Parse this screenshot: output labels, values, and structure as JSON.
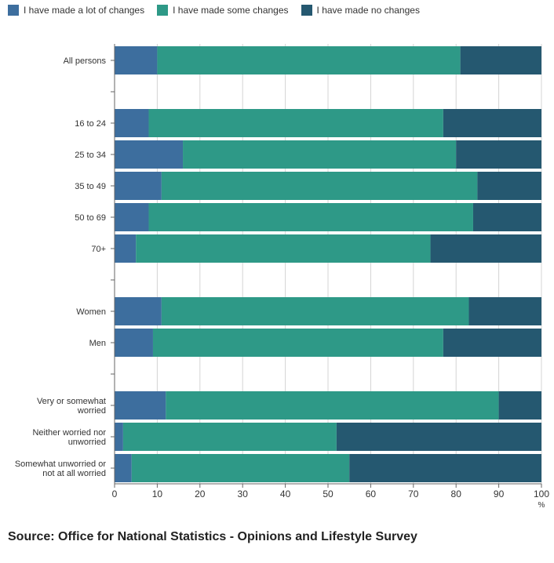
{
  "legend": {
    "series_a": "I have made a lot of changes",
    "series_b": "I have made some changes",
    "series_c": "I have made no changes"
  },
  "colors": {
    "series_a": "#3d6e9e",
    "series_b": "#2e9987",
    "series_c": "#255870",
    "grid": "#d4d4d4",
    "axis": "#666666",
    "text": "#222222"
  },
  "chart_data": {
    "type": "bar",
    "orientation": "horizontal",
    "stacked": true,
    "title": "",
    "xlabel": "%",
    "ylabel": "",
    "xlim": [
      0,
      100
    ],
    "xticks": [
      0,
      10,
      20,
      30,
      40,
      50,
      60,
      70,
      80,
      90,
      100
    ],
    "grid": true,
    "legend_position": "top-left",
    "categories": [
      "All persons",
      "",
      "16 to 24",
      "25 to 34",
      "35 to 49",
      "50 to 69",
      "70+",
      "",
      "Women",
      "Men",
      "",
      "Very or somewhat worried",
      "Neither worried nor unworried",
      "Somewhat unworried or not at all worried"
    ],
    "category_lines": [
      [
        "All persons"
      ],
      [
        ""
      ],
      [
        "16 to 24"
      ],
      [
        "25 to 34"
      ],
      [
        "35 to 49"
      ],
      [
        "50 to 69"
      ],
      [
        "70+"
      ],
      [
        ""
      ],
      [
        "Women"
      ],
      [
        "Men"
      ],
      [
        ""
      ],
      [
        "Very or somewhat",
        "worried"
      ],
      [
        "Neither worried nor",
        "unworried"
      ],
      [
        "Somewhat unworried or",
        "not at all worried"
      ]
    ],
    "series": [
      {
        "name": "I have made a lot of changes",
        "values": [
          10,
          null,
          8,
          16,
          11,
          8,
          5,
          null,
          11,
          9,
          null,
          12,
          2,
          4
        ]
      },
      {
        "name": "I have made some changes",
        "values": [
          71,
          null,
          69,
          64,
          74,
          76,
          69,
          null,
          72,
          68,
          null,
          78,
          50,
          51
        ]
      },
      {
        "name": "I have made no changes",
        "values": [
          19,
          null,
          23,
          20,
          15,
          16,
          26,
          null,
          17,
          23,
          null,
          10,
          48,
          45
        ]
      }
    ]
  },
  "source": "Source: Office for National Statistics - Opinions and Lifestyle Survey"
}
